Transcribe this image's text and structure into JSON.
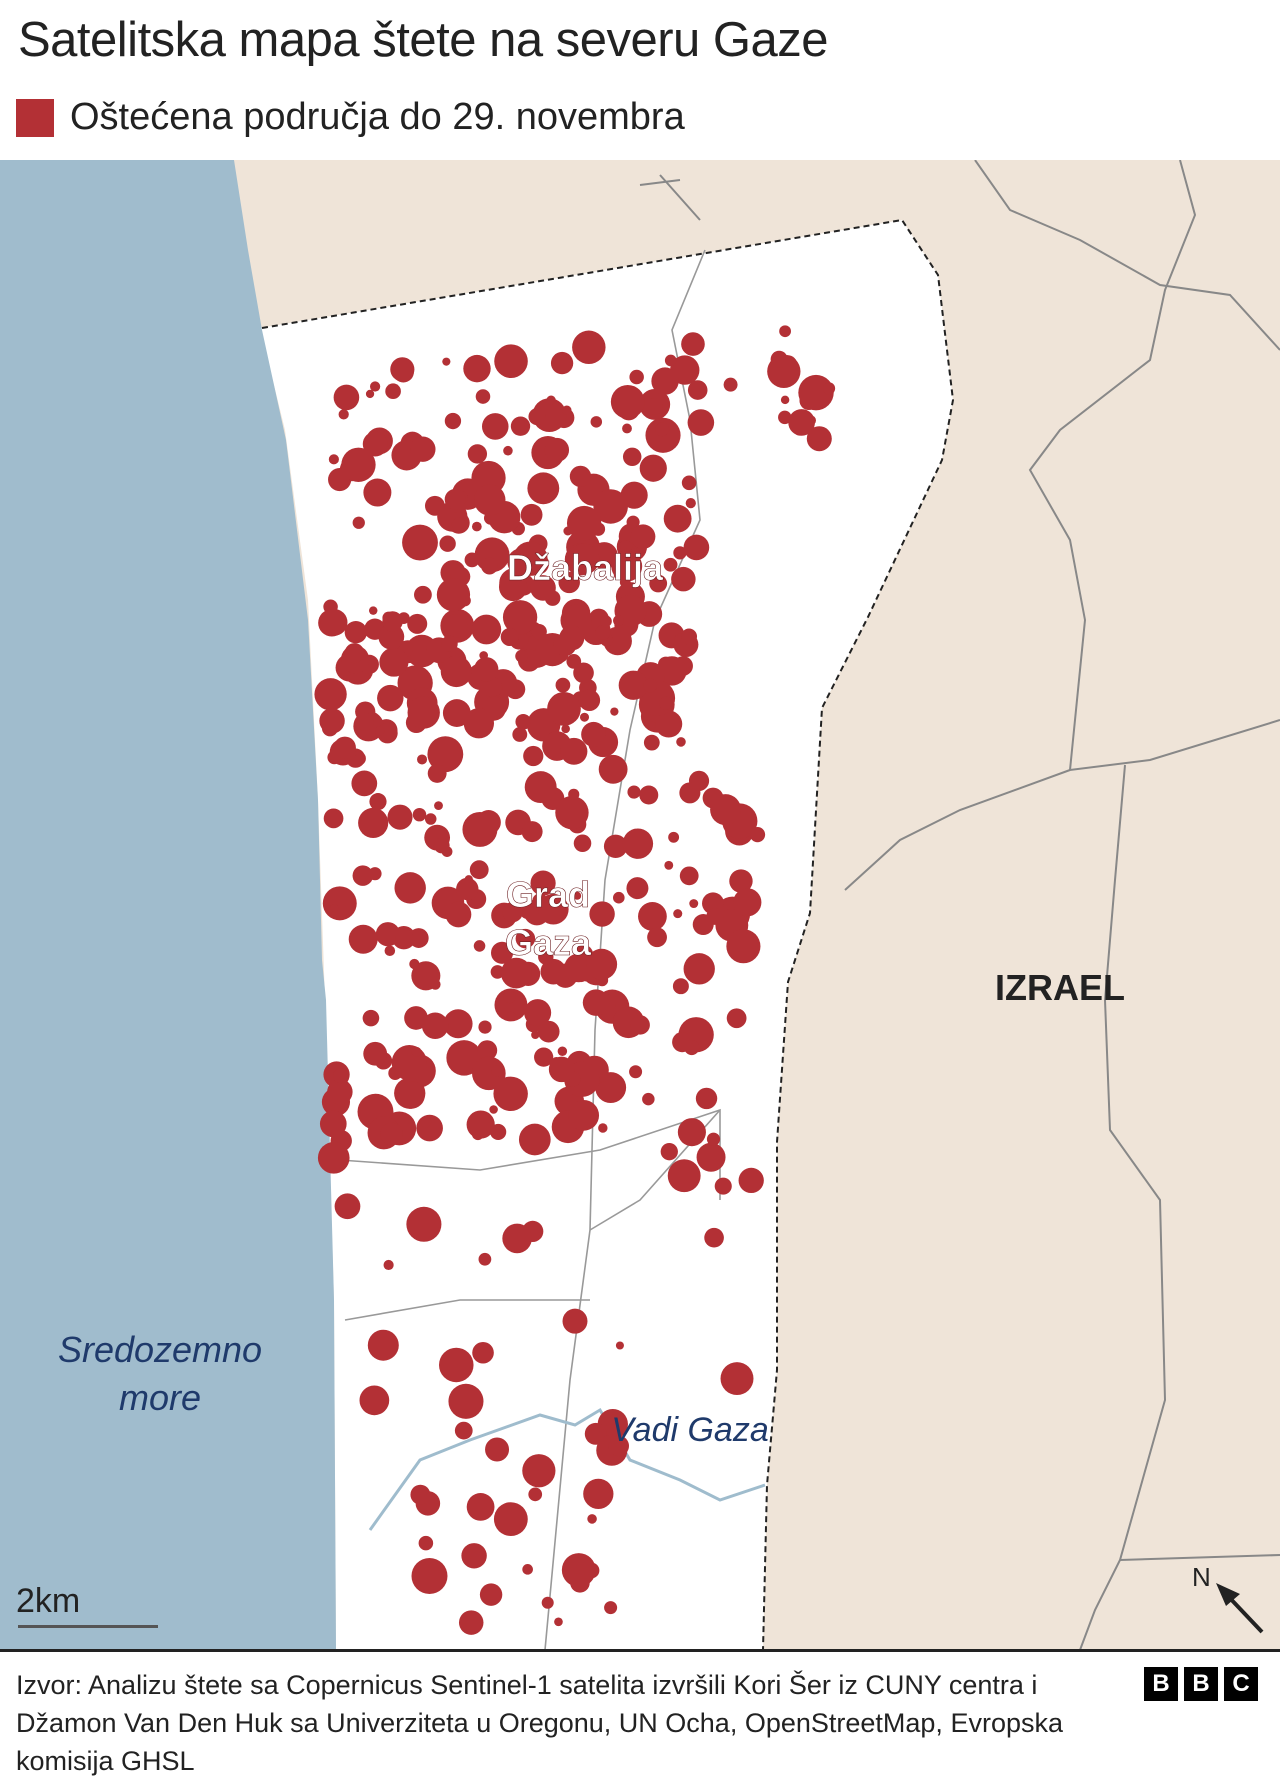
{
  "title": "Satelitska mapa štete na severu Gaze",
  "legend": {
    "label": "Oštećena područja do 29. novembra",
    "color": "#b33035"
  },
  "map": {
    "labels": {
      "jabalia": "Džabalija",
      "gaza_city_line1": "Grad",
      "gaza_city_line2": "Gaza",
      "israel": "IZRAEL",
      "sea_line1": "Sredozemno",
      "sea_line2": "more",
      "wadi": "Vadi Gaza"
    },
    "scale_label": "2km",
    "north_label": "N",
    "colors": {
      "sea": "#a0bccd",
      "israel": "#efe4d8",
      "damage": "#b33035",
      "gaza": "#ffffff",
      "wadi": "#9fbccd"
    }
  },
  "footer": {
    "source": "Izvor: Analizu štete sa Copernicus Sentinel-1 satelita izvršili Kori Šer iz CUNY centra i Džamon Van Den Huk sa Univerziteta u Oregonu, UN Ocha, OpenStreetMap, Evropska komisija GHSL",
    "logo": [
      "B",
      "B",
      "C"
    ]
  }
}
